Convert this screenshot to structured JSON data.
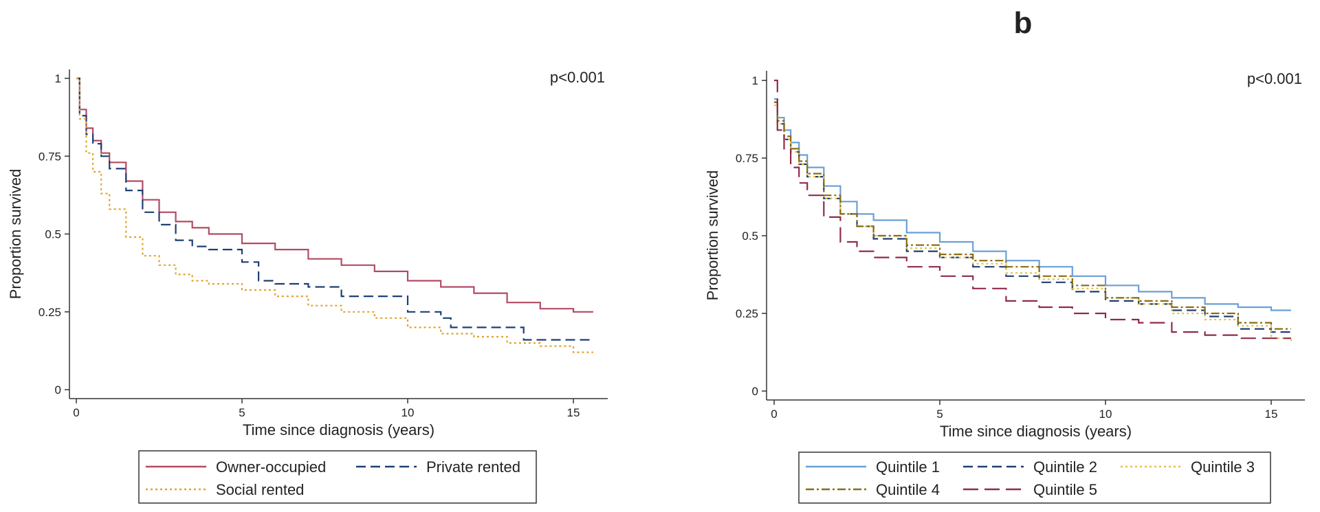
{
  "chart_data": [
    {
      "type": "line",
      "panel_label": "",
      "annotation": "p<0.001",
      "xlabel": "Time since diagnosis (years)",
      "ylabel": "Proportion survived",
      "xlim": [
        0,
        16
      ],
      "ylim": [
        0,
        1
      ],
      "xticks": [
        "0",
        "5",
        "10",
        "15"
      ],
      "yticks": [
        "0",
        "0.25",
        "0.5",
        "0.75",
        "1"
      ],
      "series": [
        {
          "name": "Owner-occupied",
          "color": "#b24a63",
          "dash": "solid",
          "x": [
            0,
            0.1,
            0.3,
            0.5,
            0.75,
            1,
            1.5,
            2,
            2.5,
            3,
            3.5,
            4,
            5,
            6,
            7,
            8,
            9,
            10,
            11,
            12,
            13,
            14,
            15,
            15.6
          ],
          "y": [
            1,
            0.9,
            0.84,
            0.8,
            0.76,
            0.73,
            0.67,
            0.61,
            0.57,
            0.54,
            0.52,
            0.5,
            0.47,
            0.45,
            0.42,
            0.4,
            0.38,
            0.35,
            0.33,
            0.31,
            0.28,
            0.26,
            0.25,
            0.25
          ]
        },
        {
          "name": "Private rented",
          "color": "#1d3f73",
          "dash": "dashed",
          "x": [
            0,
            0.1,
            0.3,
            0.5,
            0.75,
            1,
            1.5,
            2,
            2.5,
            3,
            3.5,
            4,
            5,
            5.5,
            6,
            7,
            8,
            9,
            10,
            10.5,
            11,
            11.3,
            12,
            13,
            13.5,
            14,
            15,
            15.6
          ],
          "y": [
            1,
            0.88,
            0.82,
            0.79,
            0.75,
            0.71,
            0.64,
            0.57,
            0.53,
            0.48,
            0.46,
            0.45,
            0.41,
            0.35,
            0.34,
            0.33,
            0.3,
            0.3,
            0.25,
            0.25,
            0.23,
            0.2,
            0.2,
            0.2,
            0.16,
            0.16,
            0.16,
            0.16
          ]
        },
        {
          "name": "Social rented",
          "color": "#e3a32b",
          "dash": "dotted",
          "x": [
            0,
            0.1,
            0.3,
            0.5,
            0.75,
            1,
            1.5,
            2,
            2.5,
            3,
            3.5,
            4,
            5,
            6,
            7,
            8,
            9,
            10,
            11,
            12,
            13,
            14,
            15,
            15.6
          ],
          "y": [
            1,
            0.87,
            0.76,
            0.7,
            0.63,
            0.58,
            0.49,
            0.43,
            0.4,
            0.37,
            0.35,
            0.34,
            0.32,
            0.3,
            0.27,
            0.25,
            0.23,
            0.2,
            0.18,
            0.17,
            0.15,
            0.14,
            0.12,
            0.12
          ]
        }
      ]
    },
    {
      "type": "line",
      "panel_label": "b",
      "annotation": "p<0.001",
      "xlabel": "Time since diagnosis (years)",
      "ylabel": "Proportion survived",
      "xlim": [
        0,
        16
      ],
      "ylim": [
        0,
        1
      ],
      "xticks": [
        "0",
        "5",
        "10",
        "15"
      ],
      "yticks": [
        "0",
        "0.25",
        "0.5",
        "0.75",
        "1"
      ],
      "series": [
        {
          "name": "Quintile 1",
          "color": "#6a9fd4",
          "dash": "solid",
          "x": [
            0,
            0.1,
            0.3,
            0.5,
            0.75,
            1,
            1.5,
            2,
            2.5,
            3,
            4,
            5,
            6,
            7,
            8,
            9,
            10,
            11,
            12,
            13,
            14,
            15,
            15.6
          ],
          "y": [
            0.94,
            0.88,
            0.84,
            0.8,
            0.76,
            0.72,
            0.66,
            0.61,
            0.57,
            0.55,
            0.51,
            0.48,
            0.45,
            0.42,
            0.4,
            0.37,
            0.34,
            0.32,
            0.3,
            0.28,
            0.27,
            0.26,
            0.26
          ]
        },
        {
          "name": "Quintile 2",
          "color": "#1d3f73",
          "dash": "dashed",
          "x": [
            0,
            0.1,
            0.3,
            0.5,
            0.75,
            1,
            1.5,
            2,
            2.5,
            3,
            4,
            5,
            6,
            7,
            8,
            9,
            10,
            11,
            12,
            13,
            14,
            15,
            15.6
          ],
          "y": [
            0.93,
            0.86,
            0.81,
            0.77,
            0.73,
            0.69,
            0.62,
            0.57,
            0.53,
            0.49,
            0.45,
            0.43,
            0.4,
            0.37,
            0.35,
            0.32,
            0.29,
            0.28,
            0.26,
            0.24,
            0.2,
            0.19,
            0.19
          ]
        },
        {
          "name": "Quintile 3",
          "color": "#e3c34a",
          "dash": "dotted",
          "x": [
            0,
            0.1,
            0.3,
            0.5,
            0.75,
            1,
            1.5,
            2,
            2.5,
            3,
            4,
            5,
            6,
            7,
            8,
            9,
            10,
            11,
            12,
            13,
            14,
            15,
            15.6
          ],
          "y": [
            0.92,
            0.86,
            0.81,
            0.77,
            0.73,
            0.69,
            0.62,
            0.57,
            0.53,
            0.5,
            0.46,
            0.43,
            0.41,
            0.38,
            0.36,
            0.33,
            0.3,
            0.28,
            0.25,
            0.23,
            0.21,
            0.17,
            0.16
          ]
        },
        {
          "name": "Quintile 4",
          "color": "#8a6d10",
          "dash": "dashdot",
          "x": [
            0,
            0.1,
            0.3,
            0.5,
            0.75,
            1,
            1.5,
            2,
            2.5,
            3,
            4,
            5,
            6,
            7,
            8,
            9,
            10,
            11,
            12,
            13,
            14,
            15,
            15.6
          ],
          "y": [
            0.93,
            0.87,
            0.82,
            0.78,
            0.74,
            0.7,
            0.63,
            0.57,
            0.53,
            0.5,
            0.47,
            0.44,
            0.42,
            0.4,
            0.37,
            0.34,
            0.3,
            0.29,
            0.27,
            0.25,
            0.22,
            0.2,
            0.2
          ]
        },
        {
          "name": "Quintile 5",
          "color": "#8e2b4a",
          "dash": "longdash",
          "x": [
            0,
            0.1,
            0.3,
            0.5,
            0.75,
            1,
            1.5,
            2,
            2.5,
            3,
            4,
            5,
            6,
            7,
            8,
            9,
            10,
            11,
            12,
            13,
            14,
            15,
            15.6
          ],
          "y": [
            1,
            0.84,
            0.78,
            0.72,
            0.67,
            0.63,
            0.56,
            0.48,
            0.45,
            0.43,
            0.4,
            0.37,
            0.33,
            0.29,
            0.27,
            0.25,
            0.23,
            0.22,
            0.19,
            0.18,
            0.17,
            0.17,
            0.17
          ]
        }
      ]
    }
  ]
}
